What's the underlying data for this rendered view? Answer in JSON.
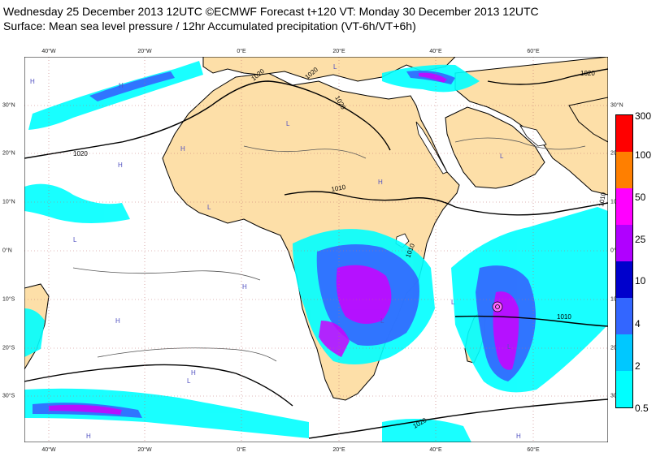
{
  "title": {
    "line1": "Wednesday 25 December 2013 12UTC ©ECMWF Forecast t+120 VT: Monday 30 December 2013 12UTC",
    "line2": "Surface: Mean sea level pressure / 12hr Accumulated precipitation (VT-6h/VT+6h)"
  },
  "map": {
    "lon_labels": [
      "40°W",
      "20°W",
      "0°E",
      "20°E",
      "40°E",
      "60°E"
    ],
    "lat_labels": [
      "30°N",
      "20°N",
      "10°N",
      "0°N",
      "10°S",
      "20°S",
      "30°S"
    ],
    "isobar_labels": [
      "1020",
      "1020",
      "1020",
      "1020",
      "1010",
      "1010",
      "1010",
      "1010",
      "1020",
      "1020"
    ],
    "pressure_centres": [
      "H",
      "L"
    ],
    "colors": {
      "ocean": "#ffffff",
      "land": "#fddfa8",
      "coast": "#000000",
      "grid": "#c07070"
    }
  },
  "legend": {
    "labels": [
      "300",
      "100",
      "50",
      "25",
      "10",
      "4",
      "2",
      "0.5"
    ],
    "colors": [
      "#ff0000",
      "#ff7f00",
      "#ff00ff",
      "#b000ff",
      "#0000cc",
      "#3366ff",
      "#00c8ff",
      "#00ffff"
    ]
  }
}
